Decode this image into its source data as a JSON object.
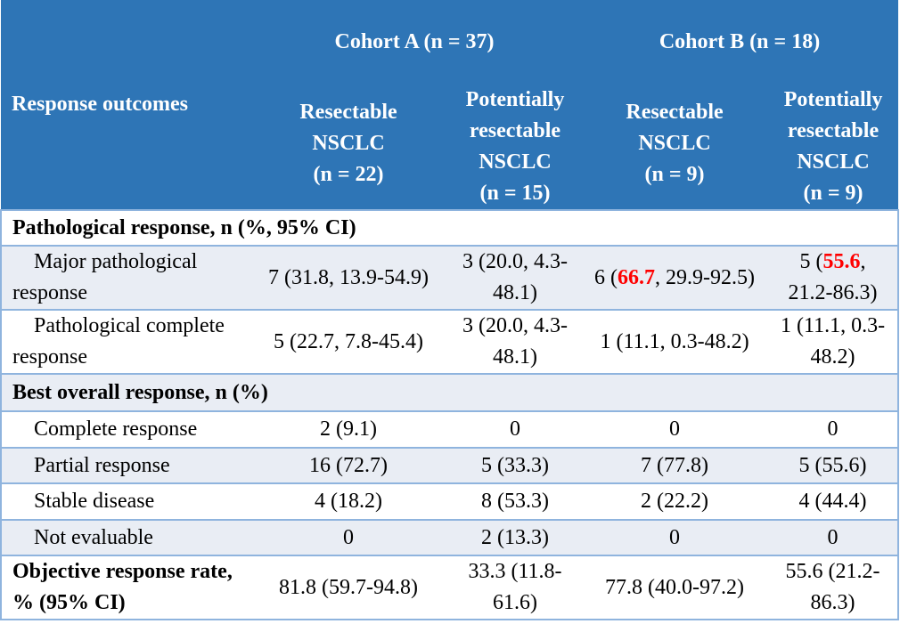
{
  "header": {
    "row_label": "Response outcomes",
    "cohort_a": "Cohort A (n = 37)",
    "cohort_b": "Cohort B (n = 18)",
    "subcolumns": [
      [
        "Resectable",
        "NSCLC",
        "(n = 22)"
      ],
      [
        "Potentially",
        "resectable",
        "NSCLC",
        "(n = 15)"
      ],
      [
        "Resectable",
        "NSCLC",
        "(n = 9)"
      ],
      [
        "Potentially",
        "resectable",
        "NSCLC",
        "(n = 9)"
      ]
    ]
  },
  "sections": {
    "pathological": "Pathological response, n (%, 95% CI)",
    "best_overall": "Best overall response, n (%)"
  },
  "rows": {
    "mpr": {
      "label": "Major pathological response",
      "values": [
        "7 (31.8, 13.9-54.9)",
        "3 (20.0, 4.3-48.1)"
      ],
      "b1": {
        "pre": "6 (",
        "hl": "66.7",
        "post": ", 29.9-92.5)"
      },
      "b2": {
        "pre": "5 (",
        "hl": "55.6",
        "post": ", 21.2-86.3)"
      }
    },
    "pcr": {
      "label": "Pathological complete response",
      "values": [
        "5 (22.7, 7.8-45.4)",
        "3 (20.0, 4.3-48.1)",
        "1 (11.1, 0.3-48.2)",
        "1 (11.1, 0.3-48.2)"
      ]
    },
    "cr": {
      "label": "Complete response",
      "values": [
        "2 (9.1)",
        "0",
        "0",
        "0"
      ]
    },
    "pr": {
      "label": "Partial response",
      "values": [
        "16 (72.7)",
        "5 (33.3)",
        "7 (77.8)",
        "5 (55.6)"
      ]
    },
    "sd": {
      "label": "Stable disease",
      "values": [
        "4 (18.2)",
        "8 (53.3)",
        "2 (22.2)",
        "4 (44.4)"
      ]
    },
    "ne": {
      "label": "Not evaluable",
      "values": [
        "0",
        "2 (13.3)",
        "0",
        "0"
      ]
    },
    "orr": {
      "label": "Objective response rate, % (95% CI)",
      "values": [
        "81.8 (59.7-94.8)",
        "33.3 (11.8-61.6)",
        "77.8 (40.0-97.2)",
        "55.6 (21.2-86.3)"
      ]
    }
  },
  "colors": {
    "header_bg": "#2e75b6",
    "row_alt": "#e9edf4",
    "highlight": "#ff0000",
    "border": "#8fb4de"
  }
}
